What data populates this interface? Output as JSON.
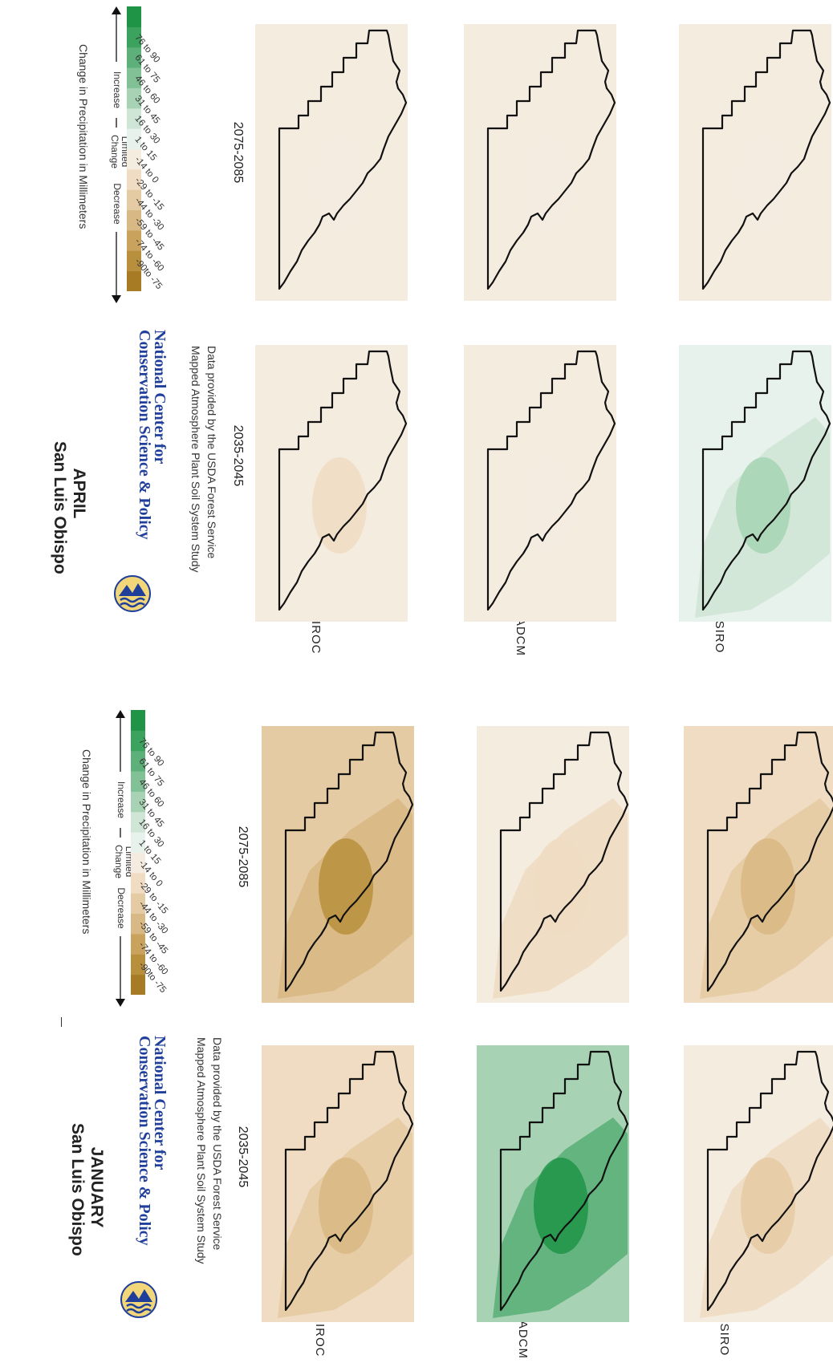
{
  "colors": {
    "bins": [
      "#a77b23",
      "#b88f3c",
      "#c9a35e",
      "#d8b884",
      "#e5cba3",
      "#efdcc2",
      "#f5ece0",
      "#e8f2ec",
      "#cfe5d6",
      "#a7d3b4",
      "#82c196",
      "#5db079",
      "#3ca35e",
      "#1f9447"
    ],
    "outline": "#111111",
    "org_blue": "#1f3f9a"
  },
  "panels": [
    {
      "month": "JANUARY",
      "place": "San Luis Obispo",
      "org_line1": "National Center for",
      "org_line2": "Conservation Science & Policy",
      "credit_line1": "Data provided by the USDA Forest Service",
      "credit_line2": "Mapped Atmosphere Plant Soil System Study",
      "periods": [
        "2035-2045",
        "2075-2085"
      ],
      "models": [
        "MIROC",
        "HADCM",
        "CSIRO"
      ],
      "maps": [
        {
          "model": "MIROC",
          "period": "2035-2045",
          "change_class": "decrease",
          "fill_bins": [
            5,
            4,
            3
          ]
        },
        {
          "model": "MIROC",
          "period": "2075-2085",
          "change_class": "strong decrease",
          "fill_bins": [
            4,
            3,
            1
          ]
        },
        {
          "model": "HADCM",
          "period": "2035-2045",
          "change_class": "increase",
          "fill_bins": [
            9,
            11,
            13
          ]
        },
        {
          "model": "HADCM",
          "period": "2075-2085",
          "change_class": "limited change",
          "fill_bins": [
            6,
            5,
            5
          ]
        },
        {
          "model": "CSIRO",
          "period": "2035-2045",
          "change_class": "slight decrease",
          "fill_bins": [
            6,
            5,
            4
          ]
        },
        {
          "model": "CSIRO",
          "period": "2075-2085",
          "change_class": "decrease",
          "fill_bins": [
            5,
            4,
            3
          ]
        }
      ],
      "legend": {
        "title": "Change in Precipitation in Millimeters",
        "group_decrease": "Decrease",
        "group_limited_1": "Limited",
        "group_limited_2": "Change",
        "group_increase": "Increase",
        "ticks": [
          "-90to -75",
          "-74 to -60",
          "-59 to -45",
          "-44 to -30",
          "-29 to -15",
          "-14 to 0",
          "1 to 15",
          "16 to 30",
          "31 to 45",
          "46 to 60",
          "61 to 75",
          "76 to 90"
        ]
      }
    },
    {
      "month": "APRIL",
      "place": "San Luis Obispo",
      "org_line1": "National Center for",
      "org_line2": "Conservation Science & Policy",
      "credit_line1": "Data provided by the USDA Forest Service",
      "credit_line2": "Mapped Atmosphere Plant Soil System Study",
      "periods": [
        "2035-2045",
        "2075-2085"
      ],
      "models": [
        "MIROC",
        "HADCM",
        "CSIRO"
      ],
      "maps": [
        {
          "model": "MIROC",
          "period": "2035-2045",
          "change_class": "limited change",
          "fill_bins": [
            6,
            6,
            5
          ]
        },
        {
          "model": "MIROC",
          "period": "2075-2085",
          "change_class": "limited change",
          "fill_bins": [
            6,
            6,
            6
          ]
        },
        {
          "model": "HADCM",
          "period": "2035-2045",
          "change_class": "limited change",
          "fill_bins": [
            6,
            6,
            6
          ]
        },
        {
          "model": "HADCM",
          "period": "2075-2085",
          "change_class": "limited change",
          "fill_bins": [
            6,
            6,
            6
          ]
        },
        {
          "model": "CSIRO",
          "period": "2035-2045",
          "change_class": "slight increase",
          "fill_bins": [
            7,
            8,
            9
          ]
        },
        {
          "model": "CSIRO",
          "period": "2075-2085",
          "change_class": "limited change",
          "fill_bins": [
            6,
            6,
            6
          ]
        }
      ],
      "legend": {
        "title": "Change in Precipitation in Millimeters",
        "group_decrease": "Decrease",
        "group_limited_1": "Limited",
        "group_limited_2": "Change",
        "group_increase": "Increase",
        "ticks": [
          "-90to -75",
          "-74 to -60",
          "-59 to -45",
          "-44 to -30",
          "-29 to -15",
          "-14 to 0",
          "1 to 15",
          "16 to 30",
          "31 to 45",
          "46 to 60",
          "61 to 75",
          "76 to 90"
        ]
      }
    }
  ]
}
